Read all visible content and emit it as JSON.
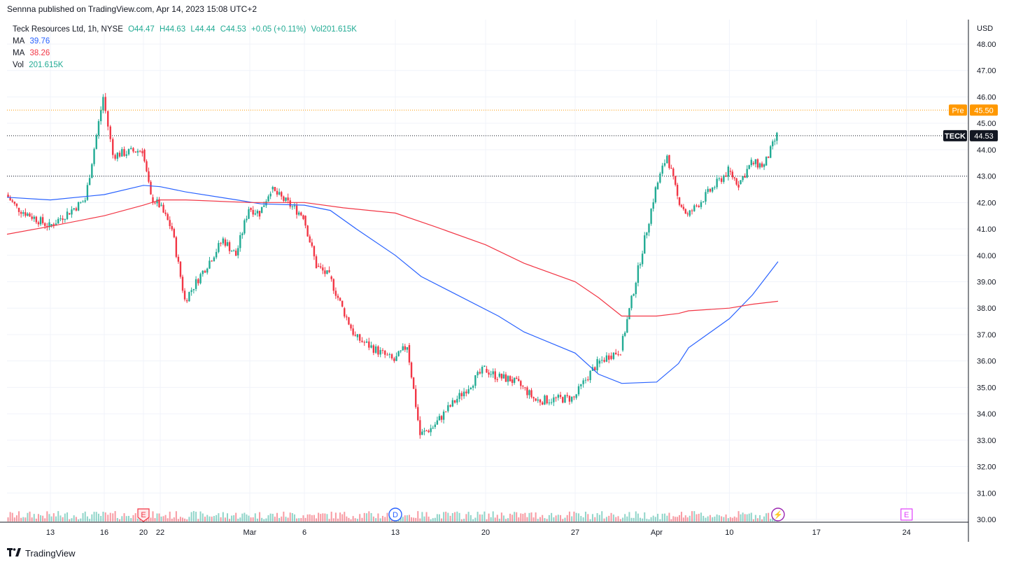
{
  "header": {
    "published_text": "Sennna published on TradingView.com, Apr 14, 2023 15:08 UTC+2"
  },
  "legend": {
    "title": "Teck Resources Ltd, 1h, NYSE",
    "open": "O44.47",
    "high": "H44.63",
    "low": "L44.44",
    "close": "C44.53",
    "change": "+0.05 (+0.11%)",
    "vol_inline": "Vol201.615K",
    "ma1_label": "MA",
    "ma1_value": "39.76",
    "ma2_label": "MA",
    "ma2_value": "38.26",
    "vol_label": "Vol",
    "vol_value": "201.615K"
  },
  "footer": {
    "logo_text": "TradingView"
  },
  "colors": {
    "up": "#22ab94",
    "down": "#f23645",
    "ma_fast": "#2962ff",
    "ma_slow": "#f23645",
    "pre": "#ff9800",
    "grid": "#f0f3fa"
  },
  "chart_data": {
    "type": "candlestick",
    "symbol": "TECK",
    "currency": "USD",
    "ylim": [
      30,
      48.5
    ],
    "y_ticks": [
      "48.00",
      "47.00",
      "46.00",
      "45.00",
      "44.00",
      "43.00",
      "42.00",
      "41.00",
      "40.00",
      "39.00",
      "38.00",
      "37.00",
      "36.00",
      "35.00",
      "34.00",
      "33.00",
      "32.00",
      "31.00",
      "30.00"
    ],
    "x_ticks": [
      "13",
      "16",
      "20",
      "22",
      "Mar",
      "6",
      "13",
      "20",
      "27",
      "Apr",
      "10",
      "17",
      "24"
    ],
    "last_price": 44.53,
    "last_label": "TECK",
    "last_value_label": "44.53",
    "pre_price": 45.5,
    "pre_label": "Pre",
    "pre_value_label": "45.50",
    "reference_line": 43.0,
    "markers": [
      {
        "label": "E",
        "date": "Feb 20"
      },
      {
        "label": "D",
        "date": "Mar 13"
      },
      {
        "label": "E",
        "date": "Apr 24"
      },
      {
        "label": "⚡",
        "date": "Apr 14"
      }
    ],
    "price_path": [
      {
        "date": "Feb 9",
        "price": 42.3
      },
      {
        "date": "Feb 10",
        "price": 41.8
      },
      {
        "date": "Feb 13",
        "price": 41.1
      },
      {
        "date": "Feb 14",
        "price": 41.6
      },
      {
        "date": "Feb 15",
        "price": 42.1
      },
      {
        "date": "Feb 16",
        "price": 46.0
      },
      {
        "date": "Feb 17",
        "price": 43.8
      },
      {
        "date": "Feb 20",
        "price": 44.0
      },
      {
        "date": "Feb 21",
        "price": 42.2
      },
      {
        "date": "Feb 22",
        "price": 41.9
      },
      {
        "date": "Feb 23",
        "price": 41.0
      },
      {
        "date": "Feb 24",
        "price": 38.3
      },
      {
        "date": "Feb 27",
        "price": 40.6
      },
      {
        "date": "Feb 28",
        "price": 40.0
      },
      {
        "date": "Mar 1",
        "price": 41.8
      },
      {
        "date": "Mar 2",
        "price": 41.6
      },
      {
        "date": "Mar 3",
        "price": 42.5
      },
      {
        "date": "Mar 6",
        "price": 41.5
      },
      {
        "date": "Mar 7",
        "price": 39.6
      },
      {
        "date": "Mar 8",
        "price": 39.2
      },
      {
        "date": "Mar 9",
        "price": 38.0
      },
      {
        "date": "Mar 10",
        "price": 36.9
      },
      {
        "date": "Mar 13",
        "price": 36.0
      },
      {
        "date": "Mar 14",
        "price": 36.6
      },
      {
        "date": "Mar 15",
        "price": 33.2
      },
      {
        "date": "Mar 16",
        "price": 33.5
      },
      {
        "date": "Mar 17",
        "price": 34.1
      },
      {
        "date": "Mar 20",
        "price": 35.7
      },
      {
        "date": "Mar 21",
        "price": 35.4
      },
      {
        "date": "Mar 22",
        "price": 35.3
      },
      {
        "date": "Mar 23",
        "price": 35.0
      },
      {
        "date": "Mar 24",
        "price": 34.5
      },
      {
        "date": "Mar 27",
        "price": 34.6
      },
      {
        "date": "Mar 28",
        "price": 35.3
      },
      {
        "date": "Mar 29",
        "price": 35.9
      },
      {
        "date": "Mar 30",
        "price": 36.2
      },
      {
        "date": "Mar 31",
        "price": 36.4
      },
      {
        "date": "Apr 3",
        "price": 42.5
      },
      {
        "date": "Apr 4",
        "price": 43.8
      },
      {
        "date": "Apr 5",
        "price": 42.2
      },
      {
        "date": "Apr 6",
        "price": 41.5
      },
      {
        "date": "Apr 10",
        "price": 43.2
      },
      {
        "date": "Apr 11",
        "price": 42.7
      },
      {
        "date": "Apr 12",
        "price": 43.5
      },
      {
        "date": "Apr 13",
        "price": 43.4
      },
      {
        "date": "Apr 14",
        "price": 44.53
      }
    ],
    "series": [
      {
        "name": "MA",
        "value_label": "39.76",
        "color": "#2962ff",
        "values": [
          {
            "date": "Feb 9",
            "v": 42.2
          },
          {
            "date": "Feb 13",
            "v": 42.1
          },
          {
            "date": "Feb 16",
            "v": 42.3
          },
          {
            "date": "Feb 20",
            "v": 42.65
          },
          {
            "date": "Feb 22",
            "v": 42.6
          },
          {
            "date": "Feb 24",
            "v": 42.4
          },
          {
            "date": "Feb 28",
            "v": 42.1
          },
          {
            "date": "Mar 2",
            "v": 41.95
          },
          {
            "date": "Mar 6",
            "v": 41.9
          },
          {
            "date": "Mar 8",
            "v": 41.7
          },
          {
            "date": "Mar 10",
            "v": 41.0
          },
          {
            "date": "Mar 13",
            "v": 40.0
          },
          {
            "date": "Mar 15",
            "v": 39.2
          },
          {
            "date": "Mar 17",
            "v": 38.7
          },
          {
            "date": "Mar 21",
            "v": 37.7
          },
          {
            "date": "Mar 23",
            "v": 37.1
          },
          {
            "date": "Mar 27",
            "v": 36.3
          },
          {
            "date": "Mar 29",
            "v": 35.5
          },
          {
            "date": "Mar 31",
            "v": 35.15
          },
          {
            "date": "Apr 3",
            "v": 35.2
          },
          {
            "date": "Apr 5",
            "v": 35.9
          },
          {
            "date": "Apr 6",
            "v": 36.5
          },
          {
            "date": "Apr 10",
            "v": 37.6
          },
          {
            "date": "Apr 12",
            "v": 38.5
          },
          {
            "date": "Apr 14",
            "v": 39.76
          }
        ]
      },
      {
        "name": "MA",
        "value_label": "38.26",
        "color": "#f23645",
        "values": [
          {
            "date": "Feb 9",
            "v": 40.8
          },
          {
            "date": "Feb 13",
            "v": 41.1
          },
          {
            "date": "Feb 16",
            "v": 41.5
          },
          {
            "date": "Feb 20",
            "v": 41.9
          },
          {
            "date": "Feb 22",
            "v": 42.1
          },
          {
            "date": "Feb 24",
            "v": 42.1
          },
          {
            "date": "Mar 1",
            "v": 42.0
          },
          {
            "date": "Mar 6",
            "v": 42.0
          },
          {
            "date": "Mar 9",
            "v": 41.8
          },
          {
            "date": "Mar 13",
            "v": 41.6
          },
          {
            "date": "Mar 16",
            "v": 41.1
          },
          {
            "date": "Mar 20",
            "v": 40.4
          },
          {
            "date": "Mar 23",
            "v": 39.7
          },
          {
            "date": "Mar 27",
            "v": 39.0
          },
          {
            "date": "Mar 29",
            "v": 38.4
          },
          {
            "date": "Mar 31",
            "v": 37.7
          },
          {
            "date": "Apr 3",
            "v": 37.7
          },
          {
            "date": "Apr 5",
            "v": 37.8
          },
          {
            "date": "Apr 6",
            "v": 37.9
          },
          {
            "date": "Apr 10",
            "v": 38.0
          },
          {
            "date": "Apr 12",
            "v": 38.15
          },
          {
            "date": "Apr 14",
            "v": 38.26
          }
        ]
      },
      {
        "name": "Vol",
        "value_label": "201.615K"
      }
    ]
  }
}
